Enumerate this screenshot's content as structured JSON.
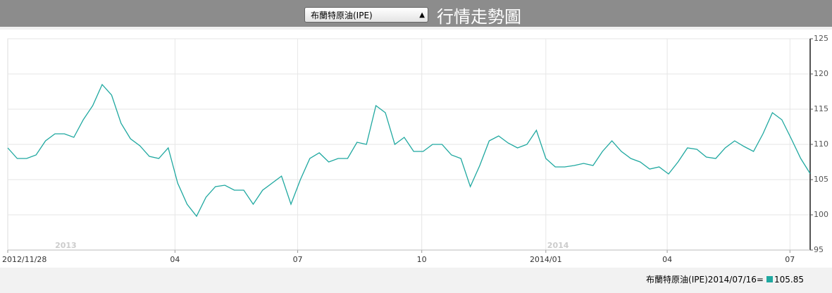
{
  "selector": "布蘭特原油(IPE)",
  "header_title": "行情走勢圖",
  "footer": {
    "text": "布蘭特原油(IPE)2014/07/16=",
    "value": 105.85
  },
  "chart_data": {
    "type": "line",
    "x": [
      "2012/11/28",
      "2012/12/05",
      "2012/12/12",
      "2012/12/19",
      "2012/12/26",
      "2013/01/02",
      "2013/01/09",
      "2013/01/16",
      "2013/01/23",
      "2013/01/30",
      "2013/02/06",
      "2013/02/13",
      "2013/02/20",
      "2013/02/27",
      "2013/03/06",
      "2013/03/13",
      "2013/03/20",
      "2013/03/27",
      "2013/04/03",
      "2013/04/10",
      "2013/04/17",
      "2013/04/24",
      "2013/05/01",
      "2013/05/08",
      "2013/05/15",
      "2013/05/22",
      "2013/05/29",
      "2013/06/05",
      "2013/06/12",
      "2013/06/19",
      "2013/06/26",
      "2013/07/03",
      "2013/07/10",
      "2013/07/17",
      "2013/07/24",
      "2013/07/31",
      "2013/08/07",
      "2013/08/14",
      "2013/08/21",
      "2013/08/28",
      "2013/09/04",
      "2013/09/11",
      "2013/09/18",
      "2013/09/25",
      "2013/10/02",
      "2013/10/09",
      "2013/10/16",
      "2013/10/23",
      "2013/10/30",
      "2013/11/06",
      "2013/11/13",
      "2013/11/20",
      "2013/11/27",
      "2013/12/04",
      "2013/12/11",
      "2013/12/18",
      "2013/12/25",
      "2014/01/01",
      "2014/01/08",
      "2014/01/15",
      "2014/01/22",
      "2014/01/29",
      "2014/02/05",
      "2014/02/12",
      "2014/02/19",
      "2014/02/26",
      "2014/03/05",
      "2014/03/12",
      "2014/03/19",
      "2014/03/26",
      "2014/04/02",
      "2014/04/09",
      "2014/04/16",
      "2014/04/23",
      "2014/04/30",
      "2014/05/07",
      "2014/05/14",
      "2014/05/21",
      "2014/05/28",
      "2014/06/04",
      "2014/06/11",
      "2014/06/18",
      "2014/06/25",
      "2014/07/02",
      "2014/07/09",
      "2014/07/16"
    ],
    "series": [
      {
        "name": "布蘭特原油(IPE)",
        "color": "#1fa8a0",
        "values": [
          109.5,
          108,
          108,
          108.5,
          110.5,
          111.5,
          111.5,
          111,
          113.5,
          115.5,
          118.5,
          117,
          113,
          110.8,
          109.8,
          108.3,
          108,
          109.5,
          104.5,
          101.5,
          99.8,
          102.5,
          104,
          104.2,
          103.5,
          103.5,
          101.5,
          103.5,
          104.5,
          105.5,
          101.5,
          105,
          108,
          108.8,
          107.5,
          108,
          108,
          110.3,
          110,
          115.5,
          114.5,
          110,
          111,
          109,
          109,
          110,
          110,
          108.5,
          108,
          104,
          107,
          110.5,
          111.2,
          110.2,
          109.5,
          110,
          112,
          108,
          106.8,
          106.8,
          107,
          107.3,
          107,
          109,
          110.5,
          109,
          108,
          107.5,
          106.5,
          106.8,
          105.8,
          107.5,
          109.5,
          109.3,
          108.2,
          108,
          109.5,
          110.5,
          109.7,
          109,
          111.5,
          114.5,
          113.5,
          110.8,
          108,
          105.85
        ]
      }
    ],
    "xlim": [
      "2012/11/28",
      "2014/07/16"
    ],
    "xticks": [
      "2012/11/28",
      {
        "value": "2013/04/01",
        "label": "04"
      },
      {
        "value": "2013/07/01",
        "label": "07"
      },
      {
        "value": "2013/10/01",
        "label": "10"
      },
      {
        "value": "2014/01/01",
        "label": "2014/01"
      },
      {
        "value": "2014/04/01",
        "label": "04"
      },
      {
        "value": "2014/07/01",
        "label": "07"
      }
    ],
    "year_labels": [
      {
        "value": "2013/01/01",
        "label": "2013"
      },
      {
        "value": "2014/01/01",
        "label": "2014"
      }
    ],
    "ylim": [
      95,
      125
    ],
    "yticks": [
      95,
      100,
      105,
      110,
      115,
      120,
      125
    ],
    "grid": true
  }
}
